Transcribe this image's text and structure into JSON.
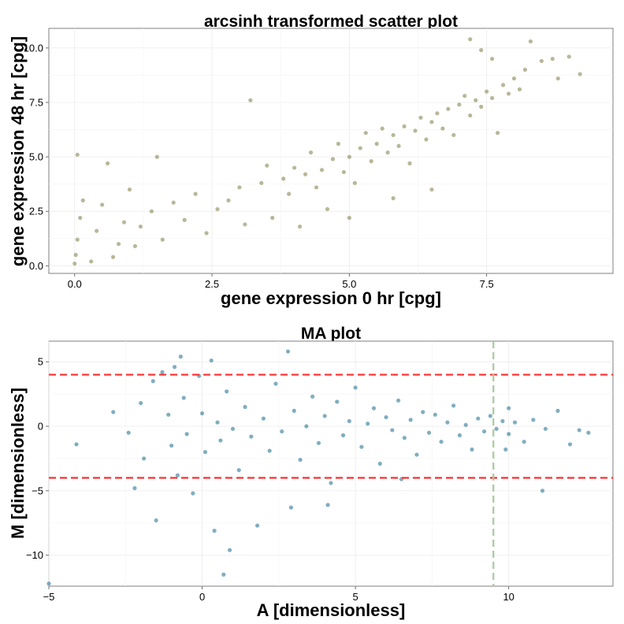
{
  "chart_data": [
    {
      "type": "scatter",
      "title": "arcsinh transformed scatter plot",
      "xlabel": "gene expression 0 hr [cpg]",
      "ylabel": "gene expression 48 hr [cpg]",
      "xlim": [
        -0.47,
        9.8
      ],
      "ylim": [
        -0.35,
        10.9
      ],
      "xticks": [
        0,
        2.5,
        5,
        7.5
      ],
      "xtick_labels": [
        "0.0",
        "2.5",
        "5.0",
        "7.5"
      ],
      "yticks": [
        0,
        2.5,
        5,
        7.5,
        10
      ],
      "ytick_labels": [
        "0.0",
        "2.5",
        "5.0",
        "7.5",
        "10.0"
      ],
      "grid": true,
      "point_color": "#7f7b45",
      "series": [
        {
          "points": [
            [
              0.0,
              0.1
            ],
            [
              0.02,
              0.5
            ],
            [
              0.05,
              1.2
            ],
            [
              0.1,
              2.2
            ],
            [
              0.05,
              5.1
            ],
            [
              0.15,
              3.0
            ],
            [
              0.3,
              0.2
            ],
            [
              0.4,
              1.6
            ],
            [
              0.5,
              2.8
            ],
            [
              0.6,
              4.7
            ],
            [
              0.7,
              0.4
            ],
            [
              0.8,
              1.0
            ],
            [
              0.9,
              2.0
            ],
            [
              1.0,
              3.5
            ],
            [
              1.1,
              0.9
            ],
            [
              1.2,
              1.8
            ],
            [
              1.4,
              2.5
            ],
            [
              1.5,
              5.0
            ],
            [
              1.6,
              1.2
            ],
            [
              1.8,
              2.9
            ],
            [
              2.0,
              2.1
            ],
            [
              2.2,
              3.3
            ],
            [
              2.4,
              1.5
            ],
            [
              2.6,
              2.6
            ],
            [
              2.8,
              3.0
            ],
            [
              3.0,
              3.6
            ],
            [
              3.1,
              1.9
            ],
            [
              3.2,
              7.6
            ],
            [
              3.4,
              3.8
            ],
            [
              3.5,
              4.6
            ],
            [
              3.6,
              2.2
            ],
            [
              3.8,
              4.0
            ],
            [
              3.9,
              3.3
            ],
            [
              4.0,
              4.5
            ],
            [
              4.1,
              1.8
            ],
            [
              4.2,
              4.2
            ],
            [
              4.3,
              5.2
            ],
            [
              4.4,
              3.6
            ],
            [
              4.5,
              4.4
            ],
            [
              4.6,
              2.6
            ],
            [
              4.7,
              4.9
            ],
            [
              4.8,
              5.6
            ],
            [
              4.9,
              4.3
            ],
            [
              5.0,
              5.0
            ],
            [
              5.1,
              3.8
            ],
            [
              5.2,
              5.4
            ],
            [
              5.3,
              6.1
            ],
            [
              5.4,
              4.8
            ],
            [
              5.5,
              5.6
            ],
            [
              5.6,
              6.3
            ],
            [
              5.7,
              5.2
            ],
            [
              5.8,
              6.0
            ],
            [
              5.9,
              5.5
            ],
            [
              6.0,
              6.4
            ],
            [
              6.1,
              4.7
            ],
            [
              6.2,
              6.2
            ],
            [
              6.3,
              6.8
            ],
            [
              6.4,
              5.8
            ],
            [
              6.5,
              6.6
            ],
            [
              6.6,
              7.0
            ],
            [
              6.7,
              6.3
            ],
            [
              6.8,
              7.2
            ],
            [
              6.9,
              6.0
            ],
            [
              7.0,
              7.4
            ],
            [
              7.1,
              7.8
            ],
            [
              7.2,
              6.9
            ],
            [
              7.3,
              7.6
            ],
            [
              7.4,
              7.3
            ],
            [
              7.5,
              8.0
            ],
            [
              7.6,
              7.7
            ],
            [
              7.8,
              8.3
            ],
            [
              7.9,
              7.9
            ],
            [
              8.0,
              8.6
            ],
            [
              8.1,
              8.1
            ],
            [
              8.2,
              9.0
            ],
            [
              8.3,
              10.3
            ],
            [
              8.5,
              9.4
            ],
            [
              8.7,
              9.5
            ],
            [
              8.8,
              8.6
            ],
            [
              9.0,
              9.6
            ],
            [
              9.2,
              8.8
            ],
            [
              7.2,
              10.4
            ],
            [
              7.4,
              9.9
            ],
            [
              6.5,
              3.5
            ],
            [
              5.8,
              3.1
            ],
            [
              5.0,
              2.2
            ],
            [
              7.6,
              9.5
            ],
            [
              7.7,
              6.1
            ]
          ]
        }
      ]
    },
    {
      "type": "scatter",
      "title": "MA plot",
      "xlabel": "A [dimensionless]",
      "ylabel": "M [dimensionless]",
      "xlim": [
        -5,
        13.4
      ],
      "ylim": [
        -12.4,
        6.6
      ],
      "xticks": [
        -5,
        0,
        5,
        10
      ],
      "xtick_labels": [
        "−5",
        "0",
        "5",
        "10"
      ],
      "yticks": [
        5,
        0,
        -5,
        -10
      ],
      "ytick_labels": [
        "5",
        "0",
        "−5",
        "−10"
      ],
      "grid": true,
      "point_color": "#1a6b8c",
      "hlines": [
        4,
        -4
      ],
      "hline_color": "#ff2d2d",
      "vline": 9.5,
      "vline_color": "#a8c9a0",
      "series": [
        {
          "points": [
            [
              -5.0,
              -12.2
            ],
            [
              -4.1,
              -1.4
            ],
            [
              -2.9,
              1.1
            ],
            [
              -2.4,
              -0.5
            ],
            [
              -2.2,
              -4.8
            ],
            [
              -2.0,
              1.8
            ],
            [
              -1.9,
              -2.5
            ],
            [
              -1.6,
              3.5
            ],
            [
              -1.5,
              -7.3
            ],
            [
              -1.3,
              4.2
            ],
            [
              -1.1,
              0.9
            ],
            [
              -1.0,
              -1.5
            ],
            [
              -0.9,
              4.6
            ],
            [
              -0.8,
              -3.8
            ],
            [
              -0.7,
              5.4
            ],
            [
              -0.6,
              2.2
            ],
            [
              -0.5,
              -0.6
            ],
            [
              -0.3,
              -5.2
            ],
            [
              -0.1,
              3.9
            ],
            [
              0.0,
              1.0
            ],
            [
              0.1,
              -2.0
            ],
            [
              0.3,
              5.1
            ],
            [
              0.4,
              -8.1
            ],
            [
              0.5,
              0.3
            ],
            [
              0.6,
              -1.1
            ],
            [
              0.7,
              -11.5
            ],
            [
              0.8,
              2.7
            ],
            [
              0.9,
              -9.6
            ],
            [
              1.0,
              -0.2
            ],
            [
              1.2,
              -3.4
            ],
            [
              1.4,
              1.5
            ],
            [
              1.6,
              -0.8
            ],
            [
              1.8,
              -7.7
            ],
            [
              2.0,
              0.6
            ],
            [
              2.2,
              -1.9
            ],
            [
              2.4,
              3.3
            ],
            [
              2.6,
              -0.4
            ],
            [
              2.8,
              5.8
            ],
            [
              3.0,
              1.2
            ],
            [
              3.2,
              -2.6
            ],
            [
              3.4,
              0.0
            ],
            [
              3.6,
              2.3
            ],
            [
              3.8,
              -1.3
            ],
            [
              4.0,
              0.8
            ],
            [
              4.2,
              -4.4
            ],
            [
              4.4,
              1.9
            ],
            [
              4.6,
              -0.7
            ],
            [
              4.8,
              0.4
            ],
            [
              5.0,
              3.0
            ],
            [
              5.2,
              -1.6
            ],
            [
              5.4,
              0.2
            ],
            [
              5.6,
              1.4
            ],
            [
              5.8,
              -2.9
            ],
            [
              6.0,
              0.7
            ],
            [
              6.2,
              -0.3
            ],
            [
              6.4,
              2.0
            ],
            [
              6.6,
              -0.9
            ],
            [
              6.8,
              0.5
            ],
            [
              7.0,
              -2.2
            ],
            [
              7.2,
              1.1
            ],
            [
              7.4,
              -0.5
            ],
            [
              7.6,
              0.9
            ],
            [
              7.8,
              -1.2
            ],
            [
              8.0,
              0.3
            ],
            [
              8.2,
              1.6
            ],
            [
              8.4,
              -0.7
            ],
            [
              8.6,
              0.1
            ],
            [
              8.8,
              -1.8
            ],
            [
              9.0,
              0.6
            ],
            [
              9.2,
              -0.4
            ],
            [
              9.4,
              0.8
            ],
            [
              9.6,
              -0.2
            ],
            [
              9.8,
              0.4
            ],
            [
              10.0,
              -0.6
            ],
            [
              10.2,
              0.3
            ],
            [
              10.5,
              -1.2
            ],
            [
              10.8,
              0.5
            ],
            [
              11.2,
              -0.2
            ],
            [
              11.6,
              1.2
            ],
            [
              12.0,
              -1.4
            ],
            [
              12.3,
              -0.3
            ],
            [
              12.6,
              -0.5
            ],
            [
              11.1,
              -5.0
            ],
            [
              9.9,
              -1.8
            ],
            [
              10.0,
              1.4
            ],
            [
              4.1,
              -6.1
            ],
            [
              6.5,
              -4.1
            ],
            [
              2.9,
              -6.3
            ]
          ]
        }
      ]
    }
  ]
}
